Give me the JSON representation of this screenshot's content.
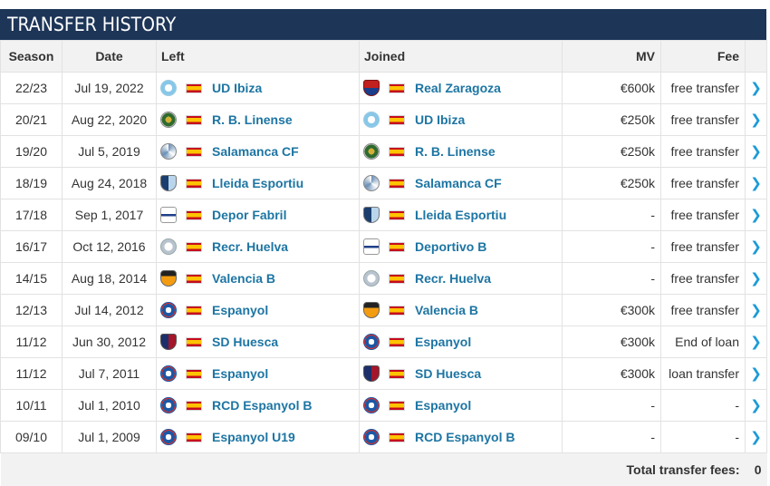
{
  "header": {
    "title": "TRANSFER HISTORY"
  },
  "columns": {
    "season": "Season",
    "date": "Date",
    "left": "Left",
    "joined": "Joined",
    "mv": "MV",
    "fee": "Fee"
  },
  "rows": [
    {
      "season": "22/23",
      "date": "Jul 19, 2022",
      "left": "UD Ibiza",
      "left_crest": "ibiza",
      "joined": "Real Zaragoza",
      "joined_crest": "zaragoza",
      "mv": "€600k",
      "fee": "free transfer"
    },
    {
      "season": "20/21",
      "date": "Aug 22, 2020",
      "left": "R. B. Linense",
      "left_crest": "linense",
      "joined": "UD Ibiza",
      "joined_crest": "ibiza",
      "mv": "€250k",
      "fee": "free transfer"
    },
    {
      "season": "19/20",
      "date": "Jul 5, 2019",
      "left": "Salamanca CF",
      "left_crest": "salamanca",
      "joined": "R. B. Linense",
      "joined_crest": "linense",
      "mv": "€250k",
      "fee": "free transfer"
    },
    {
      "season": "18/19",
      "date": "Aug 24, 2018",
      "left": "Lleida Esportiu",
      "left_crest": "lleida",
      "joined": "Salamanca CF",
      "joined_crest": "salamanca",
      "mv": "€250k",
      "fee": "free transfer"
    },
    {
      "season": "17/18",
      "date": "Sep 1, 2017",
      "left": "Depor Fabril",
      "left_crest": "depor",
      "joined": "Lleida Esportiu",
      "joined_crest": "lleida",
      "mv": "-",
      "fee": "free transfer"
    },
    {
      "season": "16/17",
      "date": "Oct 12, 2016",
      "left": "Recr. Huelva",
      "left_crest": "huelva",
      "joined": "Deportivo B",
      "joined_crest": "depor",
      "mv": "-",
      "fee": "free transfer"
    },
    {
      "season": "14/15",
      "date": "Aug 18, 2014",
      "left": "Valencia B",
      "left_crest": "valencia",
      "joined": "Recr. Huelva",
      "joined_crest": "huelva",
      "mv": "-",
      "fee": "free transfer"
    },
    {
      "season": "12/13",
      "date": "Jul 14, 2012",
      "left": "Espanyol",
      "left_crest": "espanyol",
      "joined": "Valencia B",
      "joined_crest": "valencia",
      "mv": "€300k",
      "fee": "free transfer"
    },
    {
      "season": "11/12",
      "date": "Jun 30, 2012",
      "left": "SD Huesca",
      "left_crest": "huesca",
      "joined": "Espanyol",
      "joined_crest": "espanyol",
      "mv": "€300k",
      "fee": "End of loan"
    },
    {
      "season": "11/12",
      "date": "Jul 7, 2011",
      "left": "Espanyol",
      "left_crest": "espanyol",
      "joined": "SD Huesca",
      "joined_crest": "huesca",
      "mv": "€300k",
      "fee": "loan transfer"
    },
    {
      "season": "10/11",
      "date": "Jul 1, 2010",
      "left": "RCD Espanyol B",
      "left_crest": "espanyol",
      "joined": "Espanyol",
      "joined_crest": "espanyol",
      "mv": "-",
      "fee": "-"
    },
    {
      "season": "09/10",
      "date": "Jul 1, 2009",
      "left": "Espanyol U19",
      "left_crest": "espanyol",
      "joined": "RCD Espanyol B",
      "joined_crest": "espanyol",
      "mv": "-",
      "fee": "-"
    }
  ],
  "flag": "spain-flag-icon",
  "row_arrow": "chevron-right-icon",
  "footer": {
    "label": "Total transfer fees:",
    "value": "0"
  }
}
